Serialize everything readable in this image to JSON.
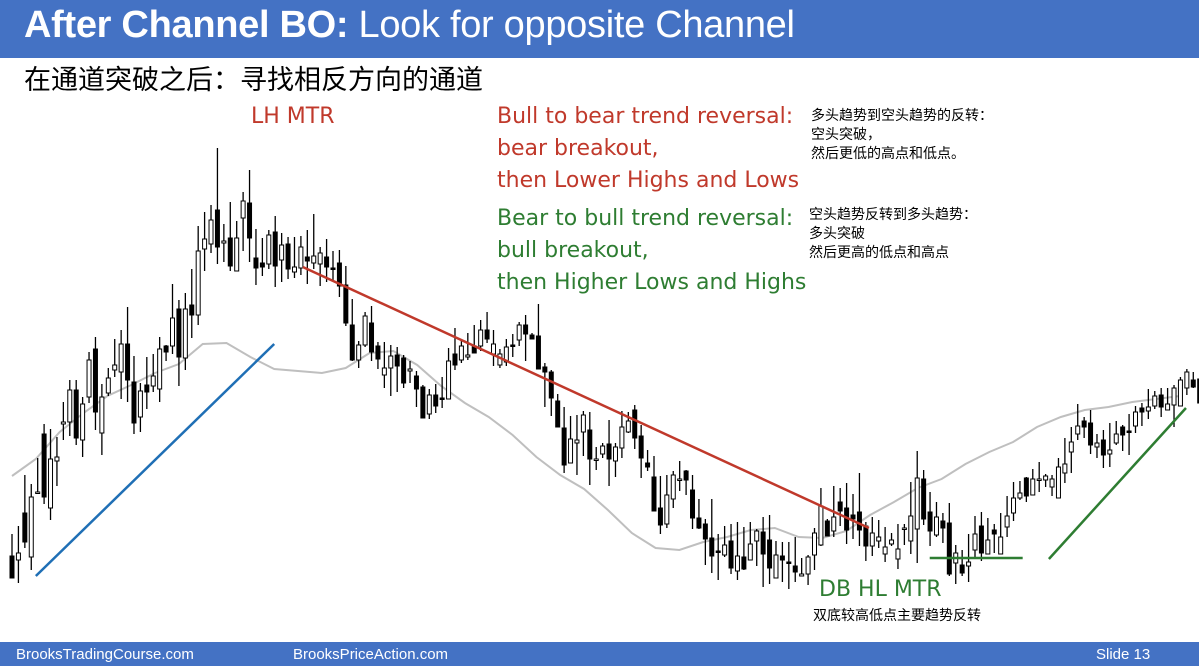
{
  "slide": {
    "title_bold": "After Channel BO:",
    "title_rest": " Look for opposite Channel",
    "subtitle_cn": "在通道突破之后：寻找相反方向的通道",
    "footer_left": "BrooksTradingCourse.com",
    "footer_mid": "BrooksPriceAction.com",
    "footer_right": "Slide  13"
  },
  "annotations": {
    "lh_mtr": "LH MTR",
    "bull_to_bear": [
      "Bull to bear trend reversal:",
      "bear breakout,",
      "then Lower Highs and Lows"
    ],
    "bull_to_bear_cn": [
      "多头趋势到空头趋势的反转：",
      "空头突破，",
      "然后更低的高点和低点。"
    ],
    "bear_to_bull": [
      "Bear to bull trend reversal:",
      "bull breakout,",
      "then Higher Lows and Highs"
    ],
    "bear_to_bull_cn": [
      "空头趋势反转到多头趋势：",
      "多头突破",
      "然后更高的低点和高点"
    ],
    "db_hl_mtr": "DB HL MTR",
    "db_hl_mtr_cn": "双底较高低点主要趋势反转"
  },
  "colors": {
    "header": "#4472c4",
    "red": "#c0392b",
    "green": "#2e7d32",
    "blue": "#1f6fb5",
    "ema": "#bfbfbf",
    "candle": "#000000"
  },
  "chart_data": {
    "type": "candlestick",
    "title": "",
    "xlabel": "",
    "ylabel": "",
    "ylim": [
      0,
      500
    ],
    "grid": false,
    "candles": [
      [
        34,
        12,
        56,
        14
      ],
      [
        30,
        37,
        64,
        7
      ],
      [
        77,
        48,
        115,
        42
      ],
      [
        33,
        93,
        106,
        20
      ],
      [
        97,
        98,
        132,
        97
      ],
      [
        156,
        93,
        166,
        86
      ],
      [
        82,
        131,
        161,
        70
      ],
      [
        129,
        133,
        153,
        104
      ],
      [
        166,
        168,
        188,
        150
      ],
      [
        168,
        200,
        210,
        154
      ],
      [
        200,
        152,
        210,
        145
      ],
      [
        150,
        186,
        193,
        133
      ],
      [
        193,
        230,
        238,
        187
      ],
      [
        241,
        178,
        253,
        160
      ],
      [
        157,
        193,
        206,
        135
      ],
      [
        197,
        212,
        222,
        194
      ],
      [
        220,
        225,
        251,
        213
      ],
      [
        218,
        246,
        260,
        191
      ],
      [
        246,
        210,
        283,
        188
      ],
      [
        208,
        167,
        234,
        156
      ],
      [
        173,
        199,
        207,
        158
      ],
      [
        205,
        198,
        233,
        181
      ],
      [
        204,
        214,
        236,
        198
      ],
      [
        201,
        241,
        253,
        188
      ],
      [
        244,
        238,
        245,
        229
      ],
      [
        244,
        272,
        306,
        236
      ],
      [
        281,
        233,
        290,
        204
      ],
      [
        232,
        281,
        297,
        220
      ],
      [
        285,
        275,
        321,
        252
      ],
      [
        275,
        339,
        364,
        265
      ],
      [
        341,
        351,
        378,
        319
      ],
      [
        346,
        370,
        385,
        337
      ],
      [
        380,
        343,
        442,
        326
      ],
      [
        347,
        349,
        366,
        328
      ],
      [
        352,
        324,
        388,
        319
      ],
      [
        319,
        352,
        369,
        322
      ],
      [
        372,
        389,
        398,
        339
      ],
      [
        387,
        352,
        420,
        328
      ],
      [
        332,
        322,
        361,
        305
      ],
      [
        327,
        323,
        352,
        314
      ],
      [
        326,
        355,
        360,
        321
      ],
      [
        358,
        324,
        374,
        303
      ],
      [
        330,
        345,
        357,
        308
      ],
      [
        346,
        321,
        353,
        311
      ],
      [
        318,
        323,
        353,
        312
      ],
      [
        322,
        343,
        354,
        315
      ],
      [
        333,
        329,
        360,
        306
      ],
      [
        327,
        334,
        376,
        321
      ],
      [
        326,
        337,
        343,
        304
      ],
      [
        333,
        323,
        351,
        308
      ],
      [
        322,
        321,
        339,
        309
      ],
      [
        327,
        304,
        340,
        293
      ],
      [
        305,
        267,
        324,
        264
      ],
      [
        265,
        230,
        291,
        229
      ],
      [
        230,
        245,
        249,
        222
      ],
      [
        245,
        274,
        278,
        243
      ],
      [
        267,
        238,
        284,
        229
      ],
      [
        244,
        231,
        248,
        221
      ],
      [
        215,
        222,
        248,
        202
      ],
      [
        222,
        234,
        245,
        194
      ],
      [
        235,
        224,
        243,
        198
      ],
      [
        232,
        207,
        235,
        202
      ],
      [
        219,
        221,
        229,
        207
      ],
      [
        214,
        201,
        219,
        183
      ],
      [
        203,
        172,
        205,
        177
      ],
      [
        176,
        195,
        201,
        171
      ],
      [
        195,
        184,
        206,
        177
      ],
      [
        192,
        191,
        213,
        182
      ],
      [
        191,
        229,
        242,
        193
      ],
      [
        236,
        225,
        262,
        220
      ],
      [
        230,
        244,
        249,
        227
      ],
      [
        233,
        235,
        257,
        230
      ],
      [
        244,
        237,
        265,
        238
      ],
      [
        244,
        260,
        270,
        239
      ],
      [
        260,
        251,
        278,
        247
      ],
      [
        236,
        246,
        260,
        224
      ],
      [
        225,
        236,
        241,
        222
      ],
      [
        228,
        243,
        251,
        224
      ],
      [
        245,
        244,
        256,
        233
      ],
      [
        250,
        265,
        268,
        244
      ],
      [
        265,
        256,
        275,
        229
      ],
      [
        255,
        251,
        257,
        251
      ],
      [
        254,
        221,
        286,
        228
      ],
      [
        223,
        218,
        227,
        183
      ],
      [
        218,
        192,
        220,
        174
      ],
      [
        189,
        163,
        196,
        165
      ],
      [
        162,
        125,
        183,
        117
      ],
      [
        127,
        151,
        174,
        130
      ],
      [
        147,
        150,
        175,
        115
      ],
      [
        158,
        175,
        179,
        134
      ],
      [
        160,
        131,
        178,
        105
      ],
      [
        130,
        131,
        143,
        120
      ],
      [
        136,
        144,
        147,
        132
      ],
      [
        146,
        131,
        170,
        104
      ],
      [
        129,
        143,
        147,
        113
      ],
      [
        142,
        163,
        179,
        132
      ],
      [
        158,
        169,
        178,
        157
      ],
      [
        180,
        152,
        185,
        141
      ],
      [
        154,
        132,
        165,
        112
      ],
      [
        127,
        123,
        140,
        119
      ],
      [
        113,
        79,
        134,
        89
      ],
      [
        82,
        65,
        114,
        56
      ],
      [
        66,
        95,
        115,
        62
      ],
      [
        91,
        115,
        119,
        82
      ],
      [
        110,
        111,
        129,
        99
      ],
      [
        119,
        110,
        120,
        95
      ],
      [
        100,
        72,
        115,
        61
      ],
      [
        72,
        62,
        91,
        61
      ],
      [
        66,
        51,
        71,
        25
      ],
      [
        52,
        34,
        91,
        17
      ],
      [
        39,
        38,
        56,
        10
      ],
      [
        35,
        45,
        64,
        33
      ],
      [
        49,
        22,
        66,
        16
      ],
      [
        19,
        34,
        68,
        10
      ],
      [
        33,
        21,
        63,
        20
      ],
      [
        30,
        46,
        68,
        32
      ],
      [
        49,
        59,
        61,
        24
      ],
      [
        58,
        36,
        73,
        3
      ],
      [
        50,
        22,
        75,
        6
      ],
      [
        12,
        35,
        49,
        23
      ],
      [
        34,
        30,
        48,
        8
      ],
      [
        28,
        27,
        48,
        1
      ],
      [
        24,
        18,
        53,
        8
      ],
      [
        14,
        16,
        32,
        17
      ],
      [
        16,
        33,
        35,
        5
      ],
      [
        35,
        57,
        62,
        20
      ],
      [
        45,
        84,
        102,
        44
      ],
      [
        69,
        54,
        71,
        56
      ],
      [
        59,
        73,
        104,
        53
      ],
      [
        88,
        79,
        102,
        64
      ],
      [
        82,
        60,
        107,
        46
      ],
      [
        75,
        71,
        96,
        51
      ],
      [
        78,
        60,
        117,
        44
      ],
      [
        64,
        44,
        68,
        29
      ],
      [
        44,
        57,
        73,
        34
      ],
      [
        49,
        53,
        70,
        42
      ],
      [
        36,
        43,
        63,
        28
      ],
      [
        46,
        50,
        57,
        44
      ],
      [
        31,
        41,
        66,
        21
      ],
      [
        61,
        62,
        66,
        45
      ],
      [
        49,
        74,
        108,
        36
      ],
      [
        61,
        112,
        139,
        27
      ],
      [
        111,
        71,
        120,
        65
      ],
      [
        78,
        59,
        98,
        44
      ],
      [
        55,
        73,
        88,
        53
      ],
      [
        69,
        62,
        77,
        47
      ],
      [
        67,
        16,
        87,
        14
      ],
      [
        27,
        37,
        45,
        6
      ],
      [
        25,
        17,
        40,
        14
      ],
      [
        24,
        28,
        56,
        8
      ],
      [
        40,
        56,
        74,
        33
      ],
      [
        64,
        37,
        78,
        29
      ],
      [
        36,
        50,
        72,
        43
      ],
      [
        60,
        56,
        66,
        37
      ],
      [
        36,
        53,
        77,
        39
      ],
      [
        63,
        74,
        94,
        53
      ],
      [
        77,
        92,
        108,
        69
      ],
      [
        92,
        97,
        109,
        90
      ],
      [
        112,
        94,
        113,
        88
      ],
      [
        95,
        111,
        121,
        105
      ],
      [
        111,
        111,
        128,
        98
      ],
      [
        110,
        114,
        116,
        103
      ],
      [
        103,
        111,
        115,
        94
      ],
      [
        92,
        123,
        132,
        94
      ],
      [
        117,
        126,
        152,
        107
      ],
      [
        138,
        148,
        163,
        117
      ],
      [
        156,
        164,
        186,
        150
      ],
      [
        169,
        163,
        173,
        152
      ],
      [
        167,
        145,
        180,
        136
      ],
      [
        143,
        147,
        156,
        132
      ],
      [
        150,
        135,
        160,
        122
      ],
      [
        136,
        140,
        167,
        123
      ],
      [
        147,
        156,
        169,
        145
      ],
      [
        163,
        155,
        165,
        139
      ],
      [
        159,
        158,
        176,
        135
      ],
      [
        164,
        178,
        184,
        157
      ],
      [
        182,
        178,
        187,
        164
      ],
      [
        179,
        183,
        201,
        171
      ],
      [
        184,
        194,
        199,
        181
      ],
      [
        195,
        183,
        202,
        173
      ],
      [
        180,
        186,
        202,
        181
      ],
      [
        185,
        202,
        205,
        163
      ],
      [
        184,
        210,
        213,
        184
      ],
      [
        202,
        218,
        221,
        195
      ],
      [
        210,
        203,
        218,
        202
      ],
      [
        211,
        187,
        210,
        172
      ],
      [
        183,
        178,
        196,
        155
      ],
      [
        183,
        197,
        210,
        181
      ],
      [
        190,
        192,
        204,
        180
      ],
      [
        194,
        214,
        215,
        180
      ],
      [
        212,
        246,
        295,
        209
      ],
      [
        250,
        270,
        285,
        259
      ],
      [
        264,
        205,
        273,
        193
      ],
      [
        221,
        218,
        226,
        193
      ],
      [
        222,
        251,
        254,
        218
      ]
    ],
    "ema": [
      [
        0,
        114
      ],
      [
        20,
        131
      ],
      [
        40,
        158
      ],
      [
        60,
        177
      ],
      [
        80,
        194
      ],
      [
        100,
        205
      ],
      [
        120,
        217
      ],
      [
        140,
        226
      ],
      [
        160,
        246
      ],
      [
        180,
        247
      ],
      [
        200,
        233
      ],
      [
        220,
        221
      ],
      [
        240,
        219
      ],
      [
        260,
        217
      ],
      [
        280,
        222
      ],
      [
        300,
        237
      ],
      [
        320,
        239
      ],
      [
        340,
        225
      ],
      [
        360,
        204
      ],
      [
        380,
        187
      ],
      [
        400,
        173
      ],
      [
        420,
        155
      ],
      [
        440,
        133
      ],
      [
        460,
        115
      ],
      [
        480,
        101
      ],
      [
        500,
        80
      ],
      [
        520,
        57
      ],
      [
        540,
        42
      ],
      [
        560,
        40
      ],
      [
        580,
        48
      ],
      [
        600,
        53
      ],
      [
        620,
        60
      ],
      [
        640,
        62
      ],
      [
        660,
        53
      ],
      [
        680,
        52
      ],
      [
        700,
        59
      ],
      [
        720,
        75
      ],
      [
        740,
        88
      ],
      [
        760,
        102
      ],
      [
        780,
        111
      ],
      [
        800,
        126
      ],
      [
        820,
        138
      ],
      [
        840,
        148
      ],
      [
        860,
        163
      ],
      [
        880,
        173
      ],
      [
        900,
        180
      ],
      [
        920,
        183
      ],
      [
        940,
        188
      ],
      [
        960,
        191
      ],
      [
        980,
        194
      ]
    ],
    "trendlines": [
      {
        "color": "blue",
        "from": [
          20,
          14
        ],
        "to": [
          220,
          246
        ]
      },
      {
        "color": "red",
        "from": [
          244,
          323
        ],
        "to": [
          719,
          62
        ]
      },
      {
        "color": "green",
        "from": [
          870,
          31
        ],
        "to": [
          985,
          182
        ]
      },
      {
        "color": "green",
        "from": [
          770,
          32
        ],
        "to": [
          848,
          32
        ]
      }
    ]
  }
}
